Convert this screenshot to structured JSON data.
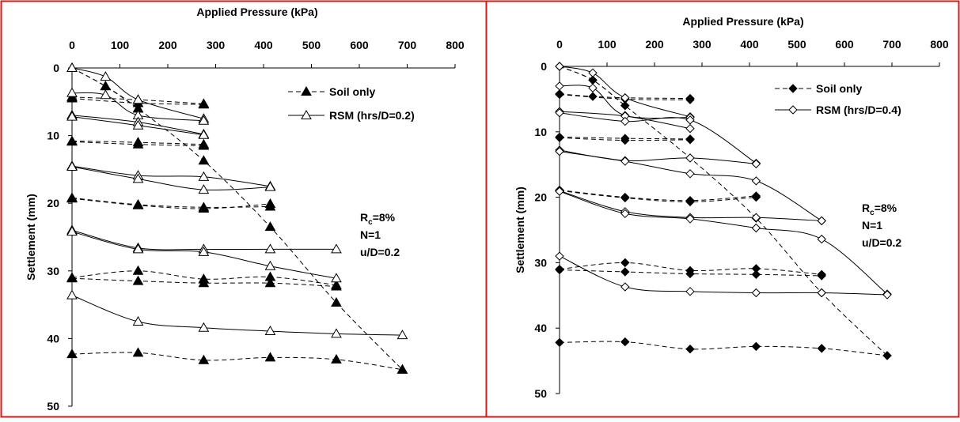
{
  "colors": {
    "frame": "#d11a1a",
    "ink": "#000000",
    "background": "#ffffff"
  },
  "chart_data": [
    {
      "type": "line",
      "xlabel": "Applied Pressure (kPa)",
      "ylabel": "Settlement (mm)",
      "xlim": [
        0,
        800
      ],
      "ylim": [
        50,
        0
      ],
      "xticks": [
        0,
        100,
        200,
        300,
        400,
        500,
        600,
        700,
        800
      ],
      "yticks": [
        0,
        10,
        20,
        30,
        40,
        50
      ],
      "x_axis_position": "top",
      "y_axis_inverted": true,
      "grid": false,
      "legend_position": "top-right",
      "annotation_lines": [
        {
          "main": "R",
          "sub": "c",
          "rest": "=8%"
        },
        {
          "main": "N=1",
          "sub": "",
          "rest": ""
        },
        {
          "main": "u/D=0.2",
          "sub": "",
          "rest": ""
        }
      ],
      "series": [
        {
          "name": "Soil only",
          "marker": "filled-triangle",
          "line_style": "dashed",
          "cycles": [
            {
              "x": [
                0,
                70,
                138
              ],
              "y": [
                0,
                2.7,
                6.0
              ],
              "closed": false
            },
            {
              "x": [
                0,
                138,
                275
              ],
              "y": [
                4.3,
                4.7,
                5.3
              ],
              "closed": false
            },
            {
              "x": [
                0,
                138,
                275
              ],
              "y": [
                10.8,
                11.0,
                11.3
              ],
              "closed": false
            },
            {
              "x": [
                0,
                138,
                275,
                414
              ],
              "y": [
                19.2,
                20.2,
                20.6,
                20.5
              ],
              "closed": false
            },
            {
              "x": [
                0,
                138,
                275,
                414,
                552
              ],
              "y": [
                31.0,
                30.0,
                31.2,
                30.9,
                32.1
              ],
              "closed": false
            },
            {
              "x": [
                0,
                138,
                275,
                414,
                552,
                690
              ],
              "y": [
                42.3,
                42.1,
                43.2,
                42.8,
                43.1,
                44.6
              ],
              "closed": false
            },
            {
              "x": [
                0,
                70,
                138,
                275,
                414,
                552,
                690
              ],
              "y": [
                0,
                2.7,
                6.0,
                13.7,
                23.5,
                34.7,
                44.6
              ],
              "closed": false,
              "role": "envelope"
            },
            {
              "x": [
                0,
                138,
                275
              ],
              "y": [
                4.5,
                5.2,
                5.4
              ],
              "closed": false
            },
            {
              "x": [
                0,
                138,
                275
              ],
              "y": [
                10.9,
                11.3,
                11.5
              ],
              "closed": false
            },
            {
              "x": [
                0,
                138,
                275,
                414
              ],
              "y": [
                19.3,
                20.3,
                20.8,
                20.1
              ],
              "closed": false
            },
            {
              "x": [
                0,
                138,
                275,
                414,
                552
              ],
              "y": [
                31.1,
                31.5,
                31.8,
                31.8,
                32.3
              ],
              "closed": false
            }
          ]
        },
        {
          "name": "RSM (hrs/D=0.2)",
          "marker": "open-triangle",
          "line_style": "solid",
          "cycles": [
            {
              "x": [
                0,
                70,
                138,
                275
              ],
              "y": [
                0,
                1.3,
                4.7,
                7.5
              ],
              "closed": false
            },
            {
              "x": [
                0,
                70,
                138,
                275
              ],
              "y": [
                3.7,
                4.0,
                7.0,
                7.8
              ],
              "closed": false
            },
            {
              "x": [
                0,
                138,
                275
              ],
              "y": [
                7.0,
                8.0,
                9.8
              ],
              "closed": false
            },
            {
              "x": [
                0,
                138,
                275
              ],
              "y": [
                7.2,
                8.5,
                9.9
              ],
              "closed": false
            },
            {
              "x": [
                0,
                138,
                275,
                414
              ],
              "y": [
                14.5,
                15.9,
                16.1,
                17.5
              ],
              "closed": false
            },
            {
              "x": [
                0,
                138,
                275,
                414
              ],
              "y": [
                14.6,
                16.4,
                18.0,
                17.6
              ],
              "closed": false
            },
            {
              "x": [
                0,
                138,
                275,
                414,
                552
              ],
              "y": [
                24.0,
                26.6,
                26.8,
                26.8,
                26.8
              ],
              "closed": false
            },
            {
              "x": [
                0,
                138,
                275,
                414,
                552
              ],
              "y": [
                24.2,
                26.8,
                27.2,
                29.3,
                31.1
              ],
              "closed": false
            },
            {
              "x": [
                0,
                138,
                275,
                414,
                552,
                690
              ],
              "y": [
                33.6,
                37.5,
                38.4,
                38.9,
                39.3,
                39.5
              ],
              "closed": false
            }
          ]
        }
      ]
    },
    {
      "type": "line",
      "xlabel": "Applied Pressure (kPa)",
      "ylabel": "Settlement (mm)",
      "xlim": [
        0,
        800
      ],
      "ylim": [
        50,
        0
      ],
      "xticks": [
        0,
        100,
        200,
        300,
        400,
        500,
        600,
        700,
        800
      ],
      "yticks": [
        0,
        10,
        20,
        30,
        40,
        50
      ],
      "x_axis_position": "top",
      "y_axis_inverted": true,
      "grid": false,
      "legend_position": "top-right",
      "annotation_lines": [
        {
          "main": "R",
          "sub": "c",
          "rest": "=8%"
        },
        {
          "main": "N=1",
          "sub": "",
          "rest": ""
        },
        {
          "main": "u/D=0.2",
          "sub": "",
          "rest": ""
        }
      ],
      "series": [
        {
          "name": "Soil only",
          "marker": "filled-diamond",
          "line_style": "dashed",
          "cycles": [
            {
              "x": [
                0,
                70,
                138
              ],
              "y": [
                0,
                2.1,
                6.0
              ],
              "closed": false
            },
            {
              "x": [
                0,
                70,
                138,
                275
              ],
              "y": [
                4.2,
                4.6,
                4.8,
                4.9
              ],
              "closed": false
            },
            {
              "x": [
                0,
                138,
                275
              ],
              "y": [
                10.8,
                11.0,
                11.1
              ],
              "closed": false
            },
            {
              "x": [
                0,
                138,
                275,
                414
              ],
              "y": [
                18.9,
                20.0,
                20.5,
                19.8
              ],
              "closed": false
            },
            {
              "x": [
                0,
                138,
                275,
                414,
                552
              ],
              "y": [
                31.0,
                30.0,
                31.2,
                30.9,
                31.8
              ],
              "closed": false
            },
            {
              "x": [
                0,
                138,
                275,
                414,
                552,
                690
              ],
              "y": [
                42.2,
                42.1,
                43.2,
                42.8,
                43.1,
                44.2
              ],
              "closed": false
            },
            {
              "x": [
                0,
                70,
                138,
                275,
                414,
                552,
                690
              ],
              "y": [
                0,
                2.1,
                6.0,
                14.0,
                23.2,
                34.6,
                44.2
              ],
              "closed": false,
              "role": "envelope"
            },
            {
              "x": [
                0,
                138,
                275
              ],
              "y": [
                4.3,
                5.0,
                5.1
              ],
              "closed": false
            },
            {
              "x": [
                0,
                138,
                275
              ],
              "y": [
                10.9,
                11.3,
                11.2
              ],
              "closed": false
            },
            {
              "x": [
                0,
                138,
                275,
                414
              ],
              "y": [
                19.0,
                20.1,
                20.7,
                20.0
              ],
              "closed": false
            },
            {
              "x": [
                0,
                138,
                275,
                414,
                552
              ],
              "y": [
                31.1,
                31.4,
                31.7,
                31.8,
                32.0
              ],
              "closed": false
            }
          ]
        },
        {
          "name": "RSM (hrs/D=0.4)",
          "marker": "open-diamond",
          "line_style": "solid",
          "cycles": [
            {
              "x": [
                0,
                70,
                138,
                275
              ],
              "y": [
                0,
                1.0,
                4.8,
                7.7
              ],
              "closed": false
            },
            {
              "x": [
                0,
                70,
                138,
                275
              ],
              "y": [
                3.0,
                3.3,
                7.5,
                7.8
              ],
              "closed": false
            },
            {
              "x": [
                0,
                138,
                275
              ],
              "y": [
                6.9,
                7.6,
                9.5
              ],
              "closed": false
            },
            {
              "x": [
                0,
                138,
                275,
                414
              ],
              "y": [
                7.1,
                8.4,
                8.2,
                14.8
              ],
              "closed": false
            },
            {
              "x": [
                0,
                138,
                275,
                414
              ],
              "y": [
                12.8,
                14.4,
                14.0,
                14.9
              ],
              "closed": false
            },
            {
              "x": [
                0,
                138,
                275,
                414,
                552
              ],
              "y": [
                13.0,
                14.5,
                16.4,
                17.5,
                23.6
              ],
              "closed": false
            },
            {
              "x": [
                0,
                138,
                275,
                414,
                552
              ],
              "y": [
                19.0,
                22.2,
                23.1,
                23.1,
                23.6
              ],
              "closed": false
            },
            {
              "x": [
                0,
                138,
                275,
                414,
                552,
                690
              ],
              "y": [
                19.1,
                22.5,
                23.3,
                24.7,
                26.4,
                34.8
              ],
              "closed": false
            },
            {
              "x": [
                0,
                138,
                275,
                414,
                552,
                690
              ],
              "y": [
                29.0,
                33.7,
                34.4,
                34.6,
                34.6,
                34.9
              ],
              "closed": false
            }
          ]
        }
      ]
    }
  ]
}
